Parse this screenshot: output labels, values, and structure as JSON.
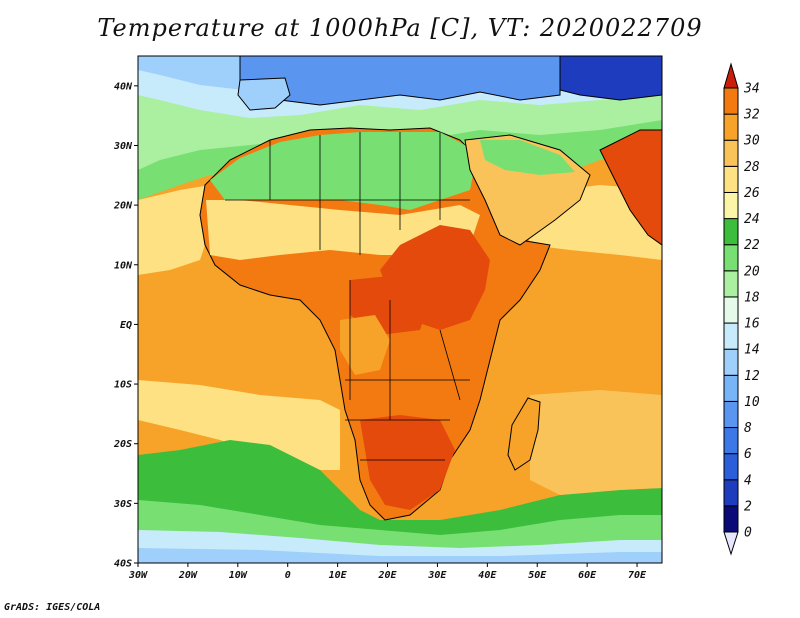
{
  "title": "Temperature at 1000hPa [C], VT: 2020022709",
  "credit": "GrADS: IGES/COLA",
  "map": {
    "lon_range": [
      -30,
      75
    ],
    "lat_range": [
      -40,
      45
    ],
    "lon_ticks": [
      {
        "value": -30,
        "label": "30W"
      },
      {
        "value": -20,
        "label": "20W"
      },
      {
        "value": -10,
        "label": "10W"
      },
      {
        "value": 0,
        "label": "0"
      },
      {
        "value": 10,
        "label": "10E"
      },
      {
        "value": 20,
        "label": "20E"
      },
      {
        "value": 30,
        "label": "30E"
      },
      {
        "value": 40,
        "label": "40E"
      },
      {
        "value": 50,
        "label": "50E"
      },
      {
        "value": 60,
        "label": "60E"
      },
      {
        "value": 70,
        "label": "70E"
      }
    ],
    "lat_ticks": [
      {
        "value": 40,
        "label": "40N"
      },
      {
        "value": 30,
        "label": "30N"
      },
      {
        "value": 20,
        "label": "20N"
      },
      {
        "value": 10,
        "label": "10N"
      },
      {
        "value": 0,
        "label": "EQ"
      },
      {
        "value": -10,
        "label": "10S"
      },
      {
        "value": -20,
        "label": "20S"
      },
      {
        "value": -30,
        "label": "30S"
      },
      {
        "value": -40,
        "label": "40S"
      }
    ]
  },
  "colorbar": {
    "levels": [
      0,
      2,
      4,
      6,
      8,
      10,
      12,
      14,
      16,
      18,
      20,
      22,
      24,
      26,
      28,
      30,
      32,
      34
    ],
    "labels": [
      "0",
      "2",
      "4",
      "6",
      "8",
      "10",
      "12",
      "14",
      "16",
      "18",
      "20",
      "22",
      "24",
      "26",
      "28",
      "30",
      "32",
      "34"
    ],
    "colors": [
      "#0a0a78",
      "#1e3cbe",
      "#2b5fd9",
      "#3c78e6",
      "#5a96f0",
      "#78b4f8",
      "#9fd0fb",
      "#c8ebfc",
      "#e6faea",
      "#aaf0a0",
      "#78e072",
      "#3cbe3c",
      "#fbf5a8",
      "#fde182",
      "#f9c35a",
      "#f7a228",
      "#f27a10",
      "#e44a0c",
      "#c81e0a"
    ]
  }
}
